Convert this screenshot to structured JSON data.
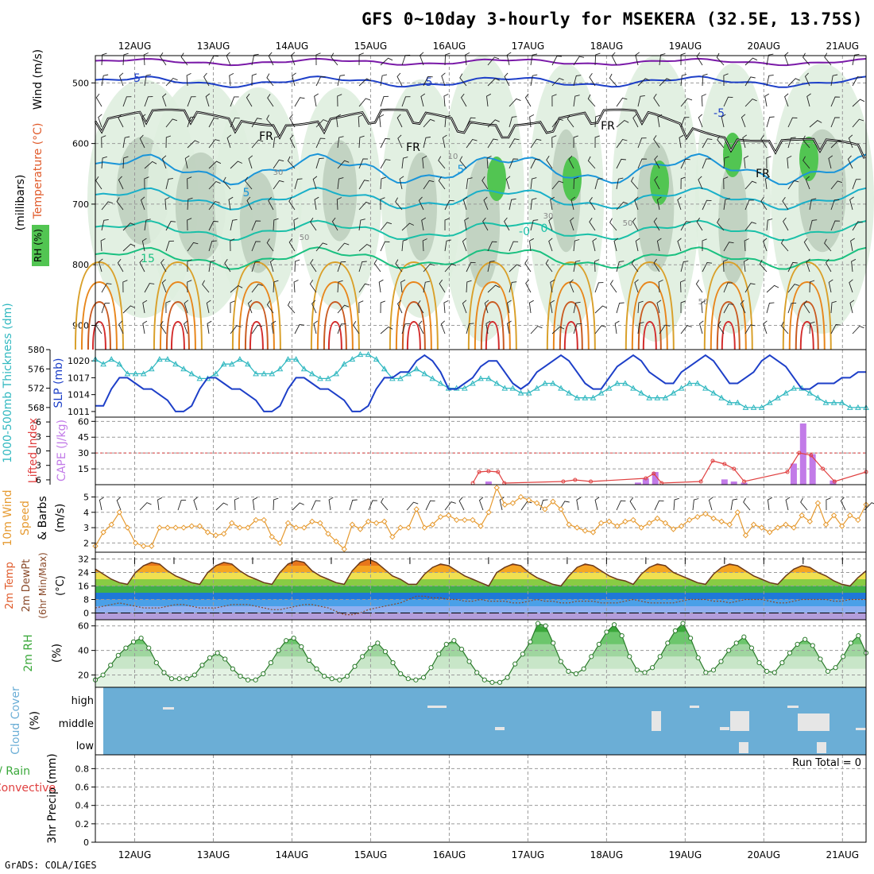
{
  "title": "GFS 0~10day 3-hourly for MSEKERA (32.5E, 13.75S)",
  "credit": "GrADS: COLA/IGES",
  "colors": {
    "rh_green": "#52c552",
    "temp_warm": "#e8861b",
    "temp_cool": "#1aa0d6",
    "slp": "#1d3fc8",
    "thickness": "#30b8c0",
    "cape_bar": "#c27be8",
    "lifted_index": "#e04040",
    "wind10m": "#e69a30",
    "rh2m": "#3aa83a",
    "cloud": "#6baed6",
    "freezing": "#000000"
  },
  "chart_data": [
    {
      "type": "heatmap",
      "panel": "Temperature / Wind / RH vertical profile",
      "ylabel_parts": [
        "Temperature (°C)",
        "Wind (m/s)",
        "RH (%)",
        "(millibars)"
      ],
      "y_ticks": [
        500,
        600,
        700,
        800,
        900
      ],
      "x_ticks": [
        "12AUG",
        "13AUG",
        "14AUG",
        "15AUG",
        "16AUG",
        "17AUG",
        "18AUG",
        "19AUG",
        "20AUG",
        "21AUG"
      ],
      "contour_labels": [
        "-5",
        "5",
        "5",
        "-5",
        "5",
        "0",
        "-0",
        "15",
        "FR",
        "FR",
        "FR",
        "FR",
        "50",
        "30",
        "30",
        "50",
        "50",
        "10"
      ],
      "grid": true
    },
    {
      "type": "line",
      "panel": "1000-500mb Thickness & SLP",
      "left_axis": {
        "label": "1000-500mb Thickness (dm)",
        "ticks": [
          568,
          572,
          576,
          580
        ],
        "ylim": [
          566,
          580
        ]
      },
      "right_axis": {
        "label": "SLP (mb)",
        "ticks": [
          1011,
          1014,
          1017,
          1020
        ],
        "ylim": [
          1010,
          1022
        ]
      },
      "series": [
        {
          "name": "Thickness",
          "values": [
            578,
            577,
            578,
            577,
            575,
            575,
            575,
            576,
            578,
            578,
            577,
            576,
            575,
            574,
            574,
            575,
            577,
            577,
            578,
            577,
            575,
            575,
            575,
            576,
            578,
            578,
            576,
            575,
            574,
            574,
            575,
            577,
            578,
            579,
            579,
            578,
            576,
            574,
            574,
            575,
            576,
            575,
            574,
            573,
            572,
            572,
            572,
            573,
            574,
            574,
            573,
            572,
            572,
            571,
            571,
            572,
            573,
            573,
            572,
            571,
            570,
            570,
            570,
            571,
            572,
            573,
            573,
            572,
            571,
            570,
            570,
            570,
            571,
            572,
            573,
            573,
            572,
            571,
            570,
            569,
            569,
            568,
            568,
            568,
            569,
            570,
            571,
            572,
            572,
            571,
            570,
            569,
            569,
            569,
            568,
            568,
            568
          ]
        },
        {
          "name": "SLP",
          "values": [
            1012,
            1012,
            1015,
            1017,
            1017,
            1016,
            1015,
            1015,
            1014,
            1013,
            1011,
            1011,
            1012,
            1015,
            1017,
            1017,
            1016,
            1015,
            1015,
            1014,
            1013,
            1011,
            1011,
            1012,
            1015,
            1017,
            1017,
            1016,
            1015,
            1015,
            1014,
            1013,
            1011,
            1011,
            1012,
            1015,
            1017,
            1017,
            1018,
            1018,
            1020,
            1021,
            1020,
            1018,
            1015,
            1015,
            1016,
            1017,
            1019,
            1020,
            1020,
            1018,
            1016,
            1015,
            1016,
            1018,
            1019,
            1020,
            1021,
            1020,
            1018,
            1016,
            1015,
            1015,
            1017,
            1019,
            1020,
            1021,
            1020,
            1018,
            1017,
            1016,
            1016,
            1018,
            1019,
            1020,
            1021,
            1020,
            1018,
            1016,
            1016,
            1017,
            1018,
            1020,
            1021,
            1020,
            1019,
            1017,
            1015,
            1015,
            1016,
            1016,
            1016,
            1017,
            1017,
            1018,
            1018
          ]
        }
      ]
    },
    {
      "type": "bar",
      "panel": "Lifted Index & CAPE",
      "left_axis": {
        "label": "Lifted Index",
        "ticks": [
          -6,
          -3,
          0,
          3,
          6
        ]
      },
      "right_axis": {
        "label": "CAPE (J/kg)",
        "ticks": [
          15,
          30,
          45,
          60
        ],
        "ylim": [
          0,
          64
        ]
      },
      "cape_bars": [
        {
          "day": 16.5,
          "value": 3
        },
        {
          "day": 18.4,
          "value": 2
        },
        {
          "day": 18.5,
          "value": 6
        },
        {
          "day": 18.62,
          "value": 12
        },
        {
          "day": 19.5,
          "value": 5
        },
        {
          "day": 19.62,
          "value": 3
        },
        {
          "day": 19.75,
          "value": 2
        },
        {
          "day": 20.38,
          "value": 20
        },
        {
          "day": 20.5,
          "value": 58
        },
        {
          "day": 20.62,
          "value": 29
        },
        {
          "day": 20.88,
          "value": 4
        }
      ],
      "lifted_index_dashed_ref": 0
    },
    {
      "type": "line",
      "panel": "10m Wind Speed & Barbs",
      "ylabel": "10m Wind Speed & Barbs (m/s)",
      "y_ticks": [
        2,
        3,
        4,
        5
      ],
      "ylim": [
        1.4,
        5.8
      ],
      "series": [
        {
          "name": "10m Wind Speed",
          "values": [
            1.8,
            2.7,
            3.2,
            4,
            3,
            2,
            1.8,
            1.8,
            3,
            3,
            3,
            3,
            3.1,
            3.1,
            2.7,
            2.5,
            2.6,
            3.3,
            3,
            3,
            3.5,
            3.5,
            2.4,
            2,
            3.3,
            3,
            3,
            3.4,
            3.3,
            2.6,
            2.1,
            1.6,
            3.2,
            2.9,
            3.4,
            3.3,
            3.4,
            2.4,
            3,
            3,
            4.2,
            3,
            3.2,
            3.7,
            3.8,
            3.5,
            3.5,
            3.5,
            3.1,
            4,
            5.6,
            4.5,
            4.6,
            5,
            4.8,
            4.6,
            4.2,
            4.7,
            4.2,
            3.2,
            3,
            2.8,
            2.7,
            3.3,
            3.4,
            3.1,
            3.4,
            3.5,
            3,
            3.3,
            3.6,
            3.3,
            2.9,
            3.1,
            3.5,
            3.7,
            3.9,
            3.6,
            3.4,
            3.2,
            4,
            2.5,
            3.2,
            3,
            2.7,
            3,
            3.2,
            3,
            3.8,
            3.4,
            4.6,
            3.2,
            3.8,
            3.1,
            3.8,
            3.5,
            4.5
          ]
        }
      ]
    },
    {
      "type": "area",
      "panel": "2m Temp & DewPt",
      "ylabel": "2m Temp 2m DewPt (6hr Min/Max) (°C)",
      "y_ticks": [
        0,
        8,
        16,
        24,
        32
      ],
      "ylim": [
        -4,
        36
      ],
      "series": [
        {
          "name": "2m Temp",
          "values": [
            26,
            23,
            20,
            18,
            17,
            24,
            28,
            30,
            29,
            25,
            22,
            20,
            18,
            17,
            24,
            28,
            30,
            29,
            25,
            22,
            20,
            18,
            17,
            24,
            29,
            31,
            30,
            25,
            22,
            20,
            18,
            17,
            25,
            30,
            32,
            30,
            26,
            22,
            20,
            17,
            17,
            23,
            27,
            29,
            28,
            25,
            22,
            20,
            18,
            16,
            24,
            27,
            29,
            28,
            24,
            21,
            19,
            17,
            16,
            22,
            27,
            29,
            28,
            25,
            22,
            20,
            19,
            17,
            23,
            27,
            29,
            28,
            24,
            22,
            20,
            18,
            17,
            23,
            27,
            29,
            28,
            25,
            22,
            20,
            18,
            17,
            22,
            26,
            28,
            27,
            24,
            22,
            19,
            17,
            16,
            21,
            25
          ]
        },
        {
          "name": "2m DewPt",
          "values": [
            3,
            4,
            5,
            6,
            5,
            4,
            3,
            3,
            3,
            4,
            5,
            5,
            4,
            3,
            3,
            3,
            4,
            5,
            5,
            5,
            4,
            3,
            2,
            2,
            3,
            4,
            5,
            5,
            4,
            3,
            1,
            -1,
            -1,
            0,
            2,
            3,
            4,
            5,
            6,
            8,
            10,
            10,
            9,
            9,
            8,
            8,
            7,
            7,
            8,
            7,
            7,
            7,
            6,
            6,
            7,
            8,
            7,
            7,
            6,
            6,
            7,
            7,
            7,
            6,
            6,
            6,
            7,
            8,
            7,
            6,
            6,
            6,
            6,
            7,
            8,
            8,
            8,
            7,
            7,
            6,
            7,
            8,
            8,
            8,
            7,
            6,
            6,
            7,
            8,
            8,
            8,
            8,
            7,
            7,
            8,
            8,
            8
          ]
        }
      ]
    },
    {
      "type": "area",
      "panel": "2m RH",
      "ylabel": "2m RH (%)",
      "y_ticks": [
        20,
        40,
        60
      ],
      "ylim": [
        10,
        65
      ],
      "series": [
        {
          "name": "2m RH",
          "values": [
            16,
            20,
            28,
            36,
            42,
            47,
            50,
            42,
            30,
            22,
            17,
            17,
            17,
            20,
            28,
            34,
            38,
            33,
            25,
            19,
            16,
            16,
            21,
            30,
            40,
            48,
            50,
            43,
            32,
            25,
            19,
            17,
            16,
            19,
            27,
            35,
            42,
            46,
            39,
            30,
            21,
            17,
            16,
            18,
            26,
            37,
            45,
            48,
            41,
            31,
            22,
            16,
            14,
            14,
            18,
            29,
            37,
            47,
            62,
            60,
            46,
            31,
            23,
            21,
            25,
            35,
            45,
            55,
            61,
            52,
            35,
            24,
            22,
            26,
            35,
            46,
            56,
            62,
            50,
            34,
            22,
            24,
            31,
            40,
            46,
            51,
            42,
            30,
            23,
            22,
            30,
            38,
            45,
            49,
            44,
            33,
            23,
            26,
            35,
            46,
            52,
            38
          ]
        }
      ]
    },
    {
      "type": "bar",
      "panel": "Cloud Cover",
      "ylabel": "Cloud Cover (%)",
      "y_ticks": [
        "high",
        "middle",
        "low"
      ]
    },
    {
      "type": "bar",
      "panel": "3hr Precip",
      "ylabel": "3hr Precip (mm)",
      "legend": [
        "Total / Rain",
        "Convective"
      ],
      "y_ticks": [
        0,
        0.2,
        0.4,
        0.6,
        0.8
      ],
      "ylim": [
        0,
        0.95
      ],
      "annotation": "Run Total = 0"
    }
  ]
}
